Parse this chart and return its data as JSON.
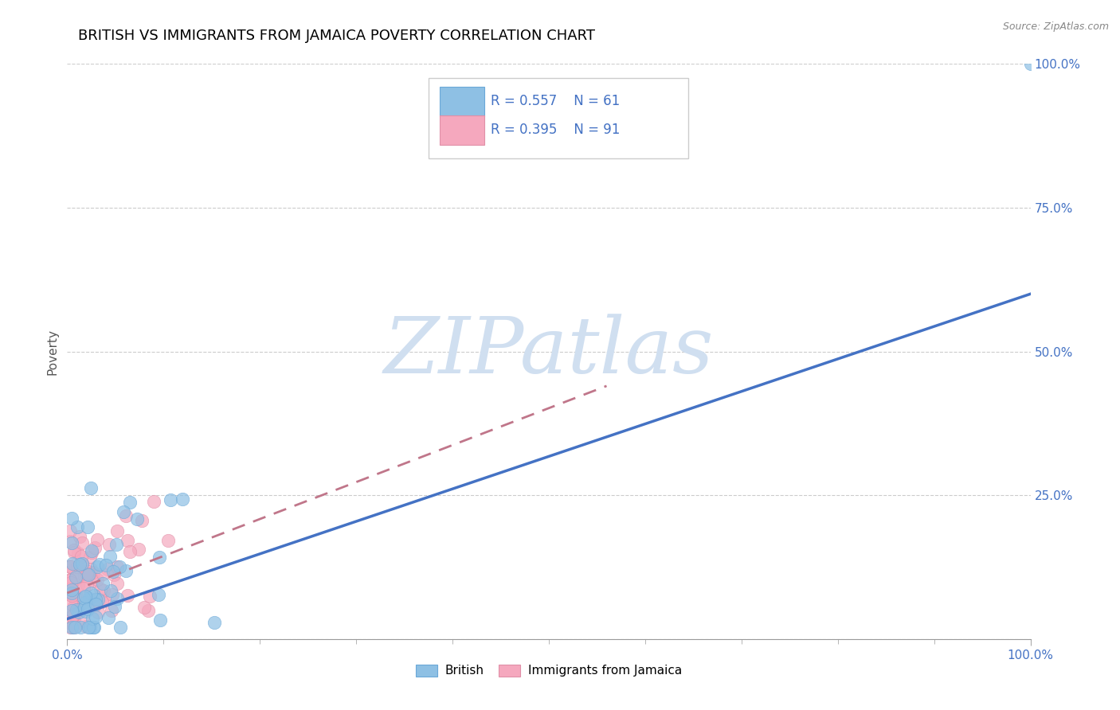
{
  "title": "BRITISH VS IMMIGRANTS FROM JAMAICA POVERTY CORRELATION CHART",
  "source_text": "Source: ZipAtlas.com",
  "ylabel": "Poverty",
  "xlim": [
    0,
    1
  ],
  "ylim": [
    0,
    1
  ],
  "ytick_positions": [
    0,
    0.25,
    0.5,
    0.75,
    1.0
  ],
  "ytick_labels": [
    "",
    "25.0%",
    "50.0%",
    "75.0%",
    "100.0%"
  ],
  "xtick_positions": [
    0,
    1.0
  ],
  "xtick_labels": [
    "0.0%",
    "100.0%"
  ],
  "british_color": "#8ec0e4",
  "jamaica_color": "#f5a8be",
  "british_line_color": "#4472c4",
  "jamaica_line_color": "#c0768a",
  "british_R": 0.557,
  "british_N": 61,
  "jamaica_R": 0.395,
  "jamaica_N": 91,
  "legend_text_color_R": "#4472c4",
  "legend_text_color_N": "#e84393",
  "watermark": "ZIPatlas",
  "watermark_color": "#d0dff0",
  "title_fontsize": 13,
  "axis_label_fontsize": 11,
  "tick_fontsize": 11,
  "source_fontsize": 9,
  "british_line_start_y": 0.035,
  "british_line_end_y": 0.6,
  "jamaica_line_start_x": 0.0,
  "jamaica_line_start_y": 0.08,
  "jamaica_line_end_x": 0.56,
  "jamaica_line_end_y": 0.44
}
